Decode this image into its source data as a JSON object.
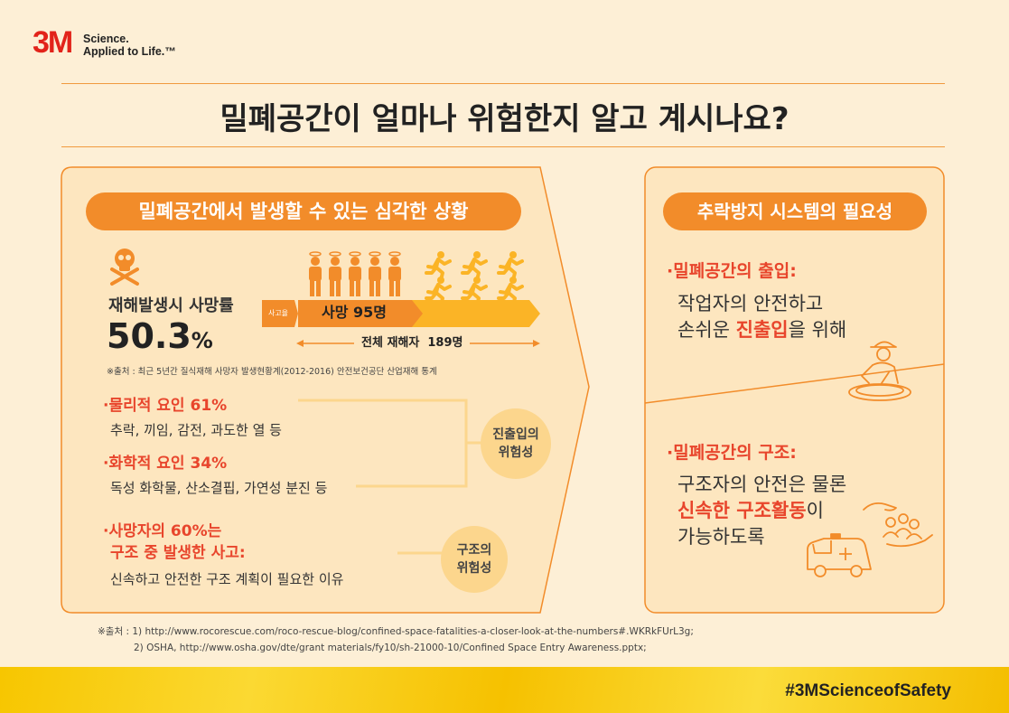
{
  "brand": {
    "logo": "3M",
    "tagline_line1": "Science.",
    "tagline_line2": "Applied to Life.™"
  },
  "title": "밀폐공간이 얼마나 위험한지 알고 계시나요?",
  "left_panel": {
    "heading": "밀폐공간에서 발생할 수 있는 심각한 상황",
    "death_rate_label": "재해발생시 사망률",
    "death_rate_value": "50.3",
    "death_rate_unit": "%",
    "accident_tag": "사고율",
    "deaths_label": "사망 95명",
    "total_label": "전체 재해자  189명",
    "source_note": "※출처 : 최근 5년간 질식재해 사망자 발생현황계(2012-2016) 안전보건공단 산업재해 통계",
    "factor1_title": "·물리적 요인 ",
    "factor1_pct": "61%",
    "factor1_desc": "추락, 끼임, 감전, 과도한 열 등",
    "factor2_title": "·화학적 요인 ",
    "factor2_pct": "34%",
    "factor2_desc": "독성 화학물, 산소결핍, 가연성 분진 등",
    "entry_risk_l1": "진출입의",
    "entry_risk_l2": "위험성",
    "rescue_title_l1": "·사망자의 60%는",
    "rescue_title_l2": "구조 중 발생한 사고:",
    "rescue_desc": "신속하고 안전한 구조 계획이 필요한 이유",
    "rescue_risk_l1": "구조의",
    "rescue_risk_l2": "위험성"
  },
  "right_panel": {
    "heading": "추락방지 시스템의 필요성",
    "entry_title_a": "·밀폐공간의 ",
    "entry_title_b": "출입:",
    "entry_desc_l1": "작업자의 안전하고",
    "entry_desc_l2a": "손쉬운 ",
    "entry_desc_l2b": "진출입",
    "entry_desc_l2c": "을 위해",
    "rescue_title_a": "·밀폐공간의 ",
    "rescue_title_b": "구조:",
    "rescue_desc_l1": "구조자의 안전은 물론",
    "rescue_desc_l2a": "신속한 구조활동",
    "rescue_desc_l2b": "이",
    "rescue_desc_l3": "가능하도록"
  },
  "footer": {
    "src_label": "※출처 :",
    "src1": "1) http://www.rocorescue.com/roco-rescue-blog/confined-space-fatalities-a-closer-look-at-the-numbers#.WKRkFUrL3g;",
    "src2": "2) OSHA, http://www.osha.gov/dte/grant materials/fy10/sh-21000-10/Confined Space Entry Awareness.pptx;",
    "hashtag": "#3MScienceofSafety"
  },
  "colors": {
    "accent": "#f28c2a",
    "red": "#e8452c",
    "bg": "#fdefd6",
    "yellow": "#fcd68d"
  },
  "icons": [
    "skull-crossbones-icon",
    "worker-figure-icon",
    "running-person-icon",
    "worker-manhole-icon",
    "ambulance-icon",
    "hands-rescue-icon"
  ]
}
